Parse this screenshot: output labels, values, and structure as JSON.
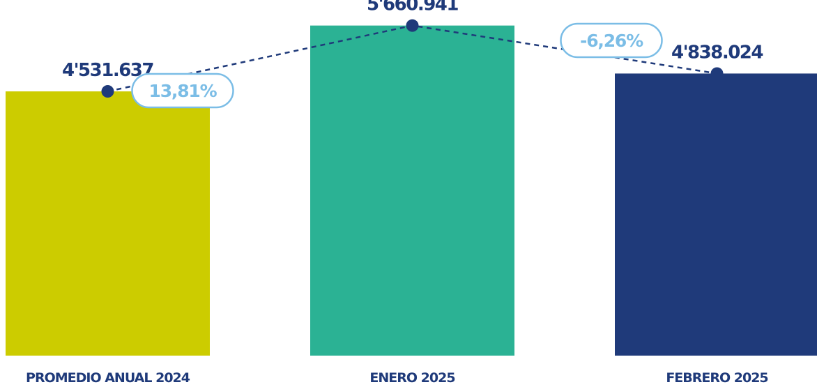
{
  "chart_data": {
    "type": "bar",
    "categories": [
      "PROMEDIO ANUAL 2024",
      "ENERO 2025",
      "FEBRERO 2025"
    ],
    "values": [
      4531637,
      5660941,
      4838024
    ],
    "value_labels": [
      "4'531.637",
      "5'660.941",
      "4'838.024"
    ],
    "bar_colors": [
      "#cccc00",
      "#2bb294",
      "#1f3a7a"
    ],
    "changes": [
      "13,81%",
      "-6,26%"
    ],
    "title": "",
    "xlabel": "",
    "ylabel": "",
    "ylim": [
      0,
      5800000
    ],
    "grid": false,
    "legend": "none",
    "trend_line": "dashed",
    "colors": {
      "text": "#1f3a7a",
      "change_pill": "#7bbde6",
      "background": "#ffffff"
    }
  }
}
